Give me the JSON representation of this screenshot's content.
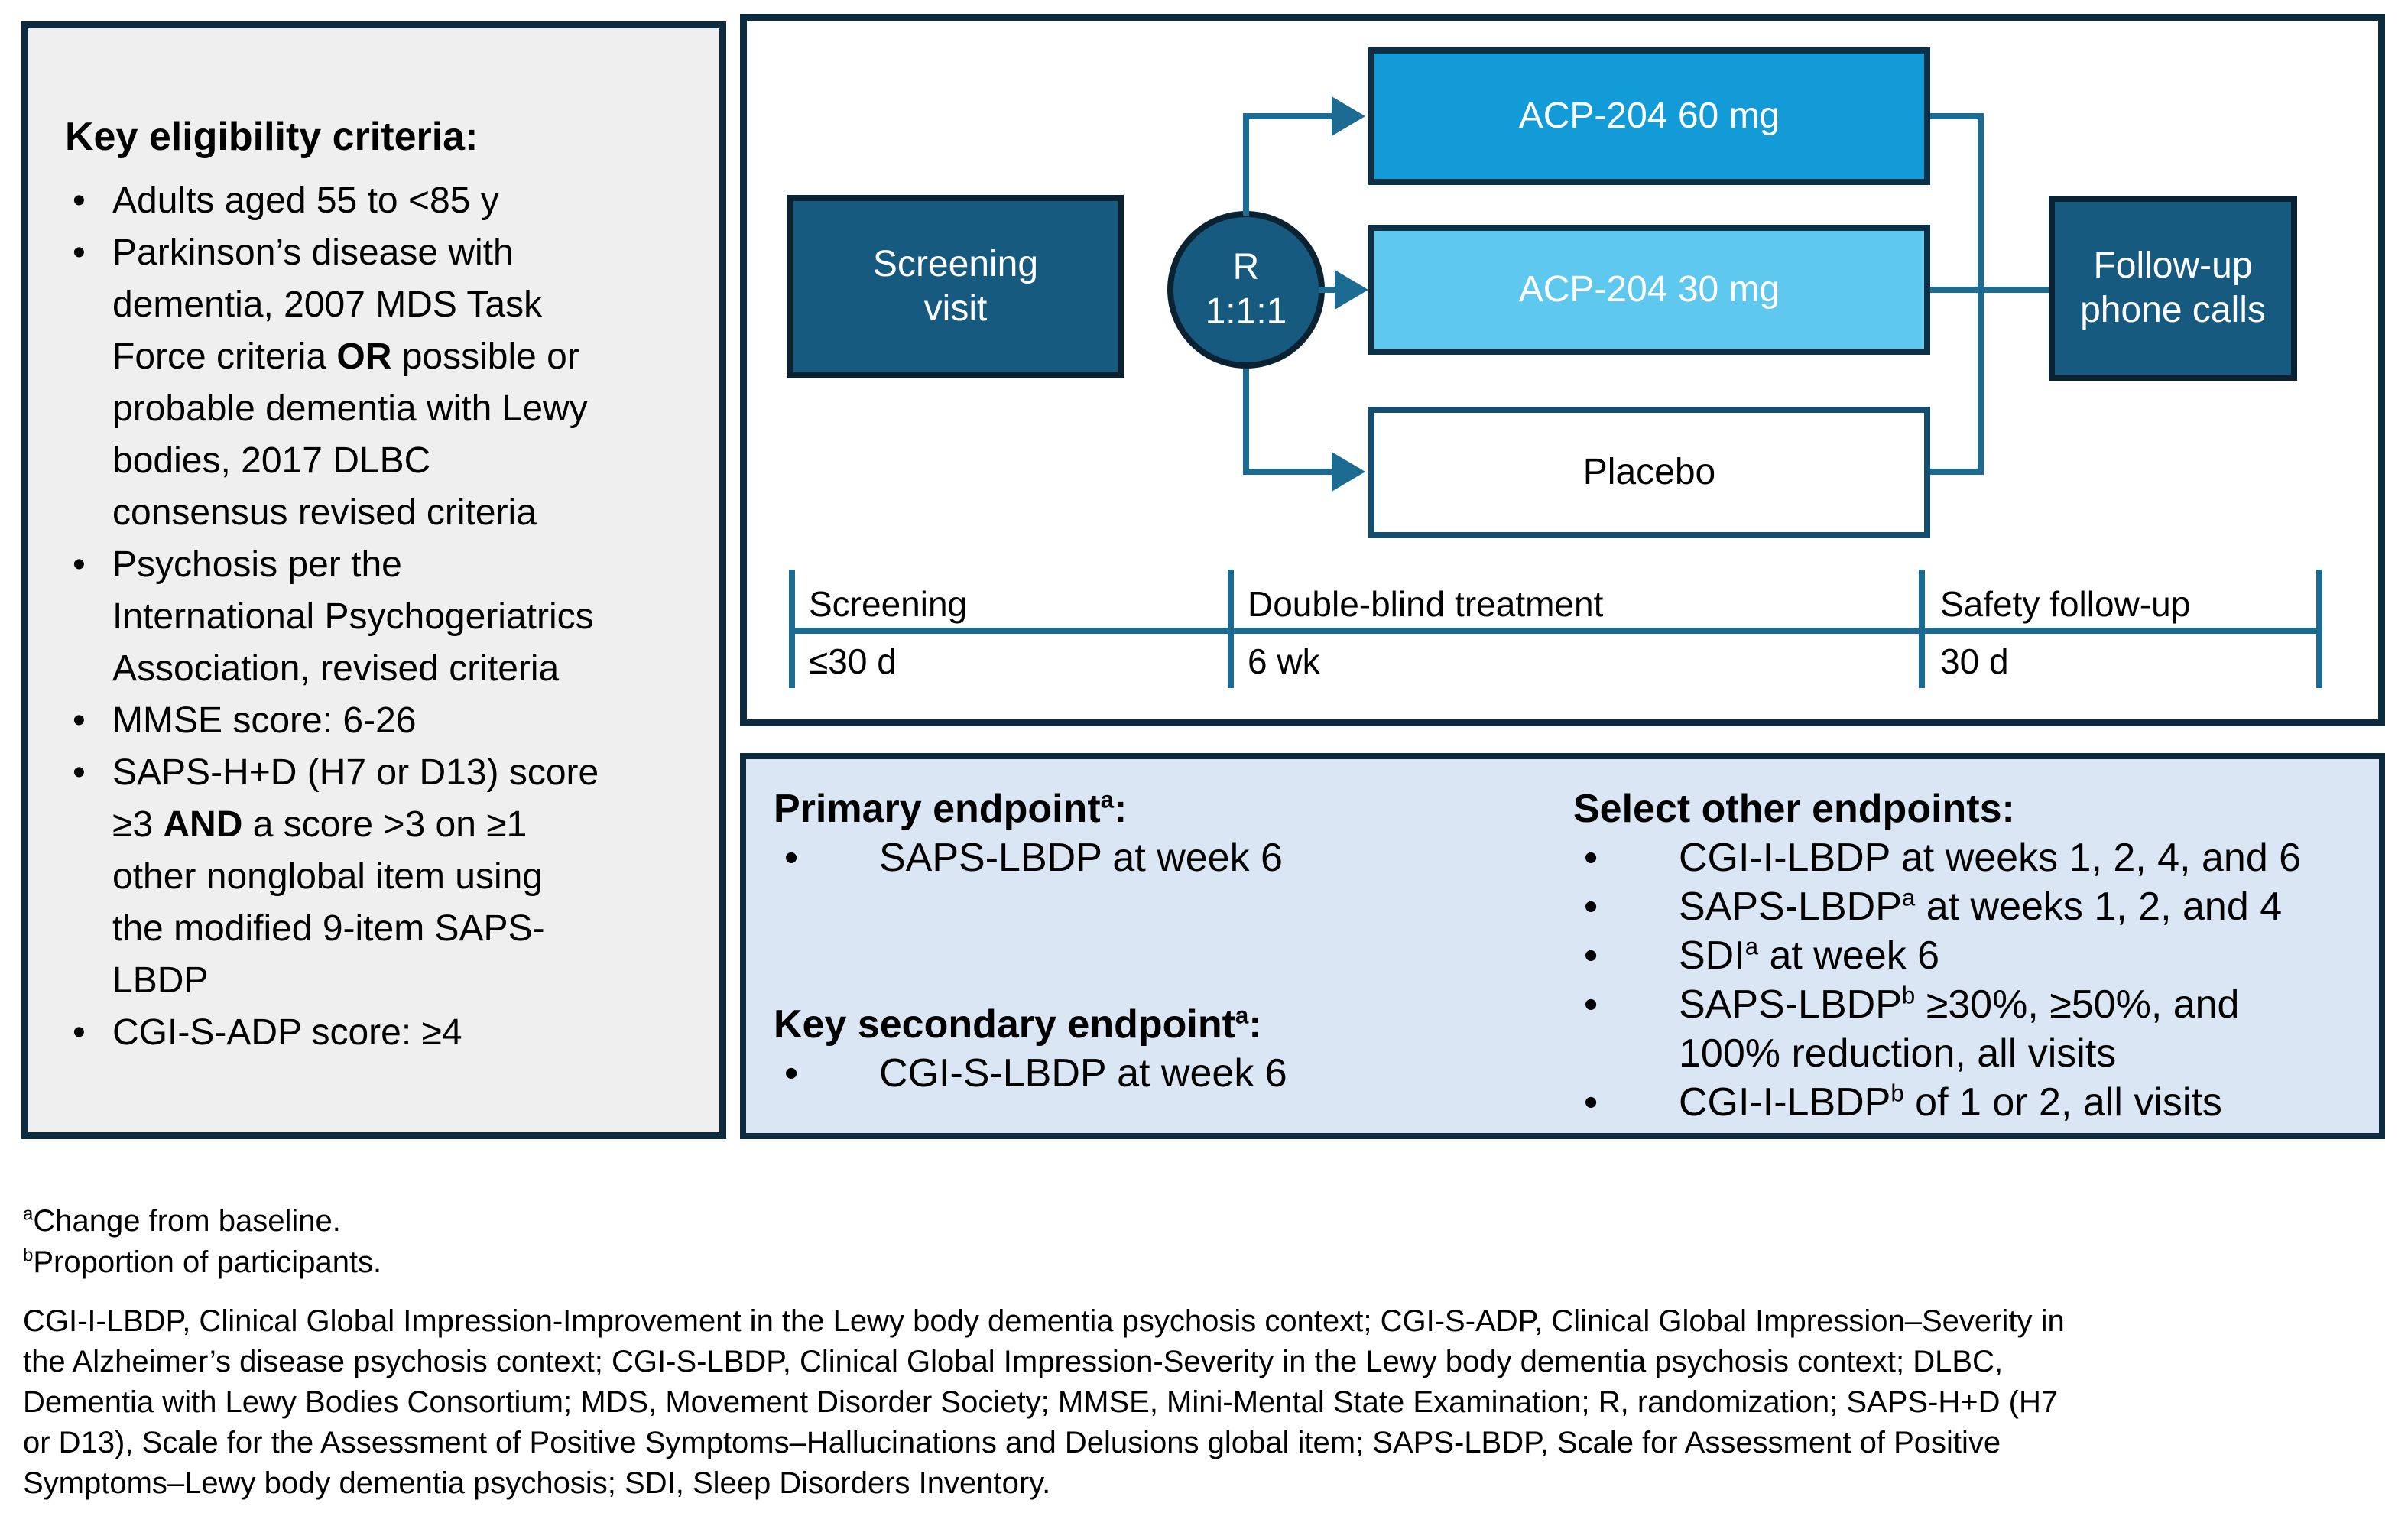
{
  "colors": {
    "panel_border": "#0d2b3e",
    "dark_box_fill": "#175a80",
    "dark_box_border": "#0a2232",
    "arm_60_fill": "#129bd7",
    "arm_30_fill": "#5fc8ef",
    "placebo_fill": "#ffffff",
    "arm_border": "#0d3049",
    "connector_teal": "#1c6b93",
    "eligibility_fill": "#efeff0",
    "endpoints_fill": "#dae6f4",
    "text_black": "#000000",
    "text_white": "#ffffff"
  },
  "eligibility": {
    "title": "Key eligibility criteria:",
    "items": [
      "Adults aged 55 to <85 y",
      "Parkinson’s disease with\ndementia, 2007 MDS Task\nForce criteria **OR** possible or\nprobable dementia with Lewy\nbodies, 2017 DLBC\nconsensus revised criteria",
      "Psychosis per the\nInternational Psychogeriatrics\nAssociation, revised criteria",
      "MMSE score: 6-26",
      "SAPS-H+D (H7 or D13) score\n≥3 **AND** a score >3 on ≥1\nother nonglobal item using\nthe modified 9-item SAPS-\nLBDP",
      "CGI-S-ADP score: ≥4"
    ]
  },
  "flow": {
    "screening_box": "Screening\nvisit",
    "randomization": {
      "symbol": "R",
      "ratio": "1:1:1"
    },
    "arms": [
      {
        "label": "ACP-204 60 mg"
      },
      {
        "label": "ACP-204 30 mg"
      },
      {
        "label": "Placebo"
      }
    ],
    "followup_box": "Follow-up\nphone calls",
    "timeline": [
      {
        "label": "Screening",
        "duration": "≤30 d"
      },
      {
        "label": "Double-blind treatment",
        "duration": "6 wk"
      },
      {
        "label": "Safety follow-up",
        "duration": "30 d"
      }
    ]
  },
  "endpoints": {
    "primary_title": "Primary endpoint^a:",
    "primary_items": [
      "SAPS-LBDP at week 6"
    ],
    "secondary_title": "Key secondary endpoint^a:",
    "secondary_items": [
      "CGI-S-LBDP at week 6"
    ],
    "other_title": "Select other endpoints:",
    "other_items": [
      "CGI-I-LBDP at weeks 1, 2, 4, and 6",
      "SAPS-LBDP^a at weeks 1, 2, and 4",
      "SDI^a at week 6",
      "SAPS-LBDP^b ≥30%, ≥50%, and\n100% reduction, all visits",
      "CGI-I-LBDP^b of 1 or 2, all visits"
    ]
  },
  "footnotes": [
    "^aChange from baseline.",
    "^bProportion of participants."
  ],
  "abbreviations": "CGI-I-LBDP, Clinical Global Impression-Improvement in the Lewy body dementia psychosis context; CGI-S-ADP, Clinical Global Impression–Severity in\nthe Alzheimer’s disease psychosis context; CGI-S-LBDP, Clinical Global Impression-Severity in the Lewy body dementia psychosis context; DLBC,\nDementia with Lewy Bodies Consortium; MDS, Movement Disorder Society; MMSE, Mini-Mental State Examination; R, randomization; SAPS-H+D (H7\nor D13), Scale for the Assessment of Positive Symptoms–Hallucinations and Delusions global item; SAPS-LBDP, Scale for Assessment of Positive\nSymptoms–Lewy body dementia psychosis; SDI, Sleep Disorders Inventory."
}
